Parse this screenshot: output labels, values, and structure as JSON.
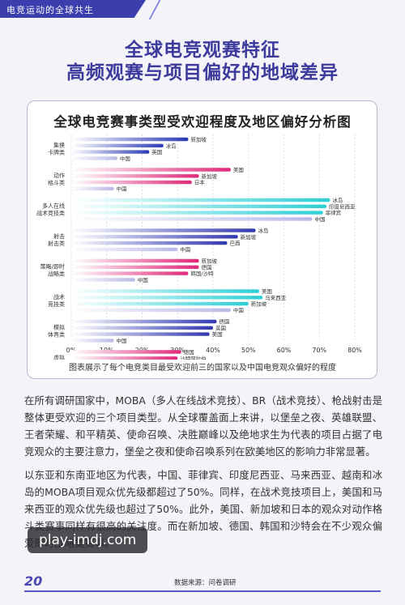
{
  "header": {
    "section_title": "电竞运动的全球共生"
  },
  "heading": {
    "line1": "全球电竞观赛特征",
    "line2": "高频观赛与项目偏好的地域差异"
  },
  "chart_data": {
    "type": "bar",
    "orientation": "horizontal",
    "title": "全球电竞赛事类型受欢迎程度及地区偏好分析图",
    "caption": "图表展示了每个电竞类目最受欢迎前三的国家以及中国电竞观众偏好的程度",
    "xlim": [
      0,
      80
    ],
    "x_ticks": [
      "0%",
      "10%",
      "20%",
      "30%",
      "40%",
      "50%",
      "60%",
      "70%",
      "80%"
    ],
    "categories": [
      {
        "label": [
          "集换",
          "卡牌类"
        ],
        "color": "#2c3bb5",
        "bars": [
          {
            "country": "新加坡",
            "value": 33
          },
          {
            "country": "冰岛",
            "value": 26
          },
          {
            "country": "英国",
            "value": 22
          },
          {
            "country": "中国",
            "value": 13
          }
        ]
      },
      {
        "label": [
          "动作",
          "格斗类"
        ],
        "color": "#e0287a",
        "bars": [
          {
            "country": "美国",
            "value": 45
          },
          {
            "country": "新加坡",
            "value": 36
          },
          {
            "country": "日本",
            "value": 34
          },
          {
            "country": "中国",
            "value": 12
          }
        ]
      },
      {
        "label": [
          "多人在线",
          "战术竞技类"
        ],
        "color": "#2bcfd4",
        "bars": [
          {
            "country": "冰岛",
            "value": 73
          },
          {
            "country": "印度尼西亚",
            "value": 72
          },
          {
            "country": "菲律宾",
            "value": 71
          },
          {
            "country": "中国",
            "value": 68
          }
        ]
      },
      {
        "label": [
          "射击",
          "射击类"
        ],
        "color": "#3238b0",
        "bars": [
          {
            "country": "冰岛",
            "value": 52
          },
          {
            "country": "新加坡",
            "value": 47
          },
          {
            "country": "巴西",
            "value": 44
          },
          {
            "country": "中国",
            "value": 30
          }
        ]
      },
      {
        "label": [
          "策略/即时",
          "战略类"
        ],
        "color": "#e0287a",
        "bars": [
          {
            "country": "新加坡",
            "value": 36
          },
          {
            "country": "德国",
            "value": 36
          },
          {
            "country": "韩国/沙特",
            "value": 33
          },
          {
            "country": "中国",
            "value": 18
          }
        ]
      },
      {
        "label": [
          "战术",
          "竞技类"
        ],
        "color": "#2bcfd4",
        "bars": [
          {
            "country": "美国",
            "value": 53
          },
          {
            "country": "马来西亚",
            "value": 54
          },
          {
            "country": "新加坡",
            "value": 50
          },
          {
            "country": "中国",
            "value": 45
          }
        ]
      },
      {
        "label": [
          "模拟",
          "体育类"
        ],
        "color": "#3238b0",
        "bars": [
          {
            "country": "德国",
            "value": 41
          },
          {
            "country": "英国",
            "value": 40
          },
          {
            "country": "美国",
            "value": 39
          },
          {
            "country": "中国",
            "value": 12
          }
        ]
      },
      {
        "label": [
          "虚拟",
          "体育类"
        ],
        "color": "#e0287a",
        "bars": [
          {
            "country": "德国",
            "value": 31
          },
          {
            "country": "沙特阿拉伯",
            "value": 30
          },
          {
            "country": "新加坡",
            "value": 24
          },
          {
            "country": "中国",
            "value": 15
          }
        ]
      }
    ]
  },
  "body": {
    "paragraph1": "在所有调研国家中，MOBA（多人在线战术竞技）、BR（战术竞技）、枪战射击是整体更受欢迎的三个项目类型。从全球覆盖面上来讲，以堡垒之夜、英雄联盟、王者荣耀、和平精英、使命召唤、决胜巅峰以及绝地求生为代表的项目占据了电竞观众的主要注意力，堡垒之夜和使命召唤系列在欧美地区的影响力非常显著。",
    "paragraph2": "以东亚和东南亚地区为代表，中国、菲律宾、印度尼西亚、马来西亚、越南和冰岛的MOBA项目观众优先级都超过了50%。同样，在战术竞技项目上，美国和马来西亚的观众优先级也超过了50%。此外，美国、新加坡和日本的观众对动作格斗类赛事同样有很高的关注度。而在新加坡、德国、韩国和沙特会在不少观众偏爱即时战略类赛事。"
  },
  "footer": {
    "page_number": "20",
    "source": "数据来源：问卷调研"
  },
  "watermark": {
    "text": "play-imdj.com"
  },
  "colors": {
    "accent": "#3c3a9c",
    "pink": "#e0287a",
    "cyan": "#2bcfd4",
    "blue": "#2c3bb5"
  }
}
